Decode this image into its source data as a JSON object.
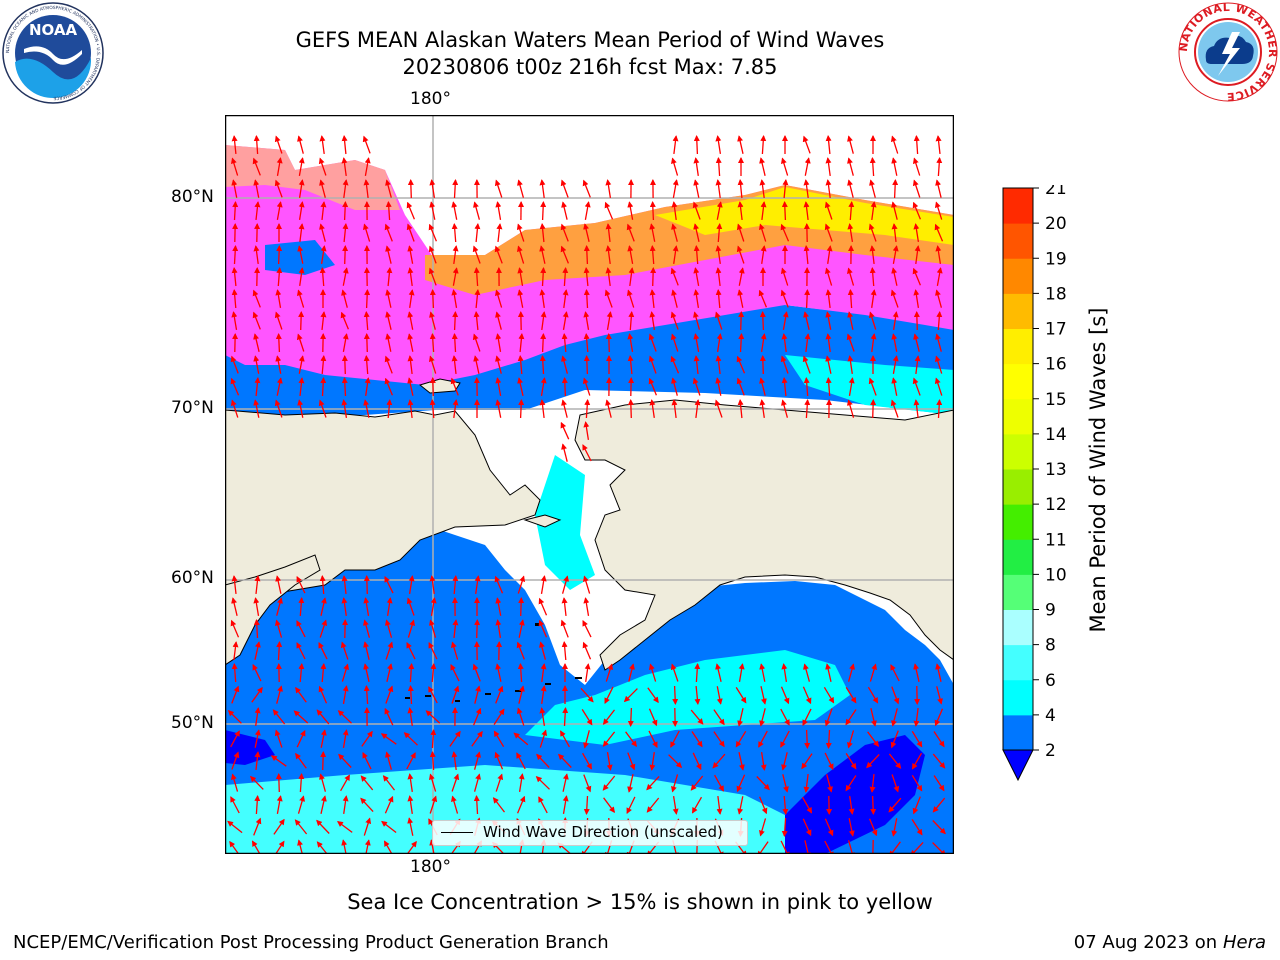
{
  "title": {
    "line1": "GEFS MEAN Alaskan Waters Mean Period of Wind Waves",
    "line2": "20230806 t00z 216h fcst   Max: 7.85"
  },
  "axes": {
    "top_lon_label": "180°",
    "bottom_lon_label": "180°",
    "lat_labels": [
      "80°N",
      "70°N",
      "60°N",
      "50°N"
    ]
  },
  "colorbar": {
    "label": "Mean Period of Wind Waves [s]",
    "ticks": [
      "2",
      "4",
      "6",
      "8",
      "9",
      "10",
      "11",
      "12",
      "13",
      "14",
      "15",
      "16",
      "17",
      "18",
      "19",
      "20",
      "21"
    ],
    "colors": [
      "#0077ff",
      "#00ffff",
      "#44ffff",
      "#aaffff",
      "#55ff77",
      "#22ee44",
      "#44ee00",
      "#99ee00",
      "#ccff00",
      "#eeff00",
      "#ffff00",
      "#ffee00",
      "#ffbb00",
      "#ff8800",
      "#ff5500",
      "#ff2a00",
      "#ff0000"
    ],
    "under_color": "#0000ff"
  },
  "colors": {
    "land": "#efecdc",
    "ocean_blue": "#0077ff",
    "ocean_cyan": "#00ffff",
    "ice_pink": "#ff55ff",
    "ice_orange": "#ffa0a0",
    "ice_yellow": "#ffee00",
    "arrow": "#ff0000",
    "grid": "#b0b0b0"
  },
  "legend": {
    "label": "Wind Wave Direction (unscaled)"
  },
  "footnote": "Sea Ice Concentration > 15% is shown in pink to yellow",
  "credit": {
    "left": "NCEP/EMC/Verification Post Processing Product Generation Branch",
    "right_date": "07 Aug 2023 on",
    "right_host": "Hera"
  },
  "logos": {
    "noaa": "NOAA",
    "noaa_ring": "NATIONAL OCEANIC AND ATMOSPHERIC ADMINISTRATION • U.S. DEPARTMENT OF COMMERCE",
    "nws_ring": "NATIONAL WEATHER SERVICE"
  }
}
